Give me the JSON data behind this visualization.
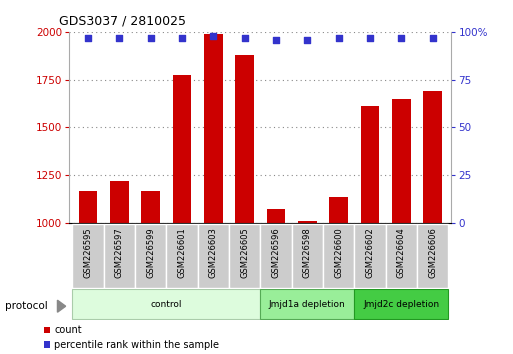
{
  "title": "GDS3037 / 2810025",
  "samples": [
    "GSM226595",
    "GSM226597",
    "GSM226599",
    "GSM226601",
    "GSM226603",
    "GSM226605",
    "GSM226596",
    "GSM226598",
    "GSM226600",
    "GSM226602",
    "GSM226604",
    "GSM226606"
  ],
  "counts": [
    1170,
    1220,
    1165,
    1775,
    1990,
    1880,
    1075,
    1010,
    1135,
    1610,
    1650,
    1690
  ],
  "percentile_ranks": [
    97,
    97,
    97,
    97,
    98,
    97,
    96,
    96,
    97,
    97,
    97,
    97
  ],
  "ylim_left": [
    1000,
    2000
  ],
  "ylim_right": [
    0,
    100
  ],
  "yticks_left": [
    1000,
    1250,
    1500,
    1750,
    2000
  ],
  "yticks_right": [
    0,
    25,
    50,
    75,
    100
  ],
  "bar_color": "#cc0000",
  "dot_color": "#3333cc",
  "groups": [
    {
      "label": "control",
      "start": 0,
      "end": 6,
      "color": "#ddfcdd",
      "edge_color": "#aaccaa"
    },
    {
      "label": "Jmjd1a depletion",
      "start": 6,
      "end": 9,
      "color": "#99ee99",
      "edge_color": "#55aa55"
    },
    {
      "label": "Jmjd2c depletion",
      "start": 9,
      "end": 12,
      "color": "#44cc44",
      "edge_color": "#229922"
    }
  ],
  "protocol_label": "protocol",
  "legend_count_label": "count",
  "legend_pct_label": "percentile rank within the sample",
  "background_color": "#ffffff",
  "tick_label_color_left": "#cc0000",
  "tick_label_color_right": "#3333cc",
  "grid_color": "#888888",
  "axis_bar_bg": "#cccccc",
  "figsize": [
    5.13,
    3.54
  ],
  "dpi": 100
}
